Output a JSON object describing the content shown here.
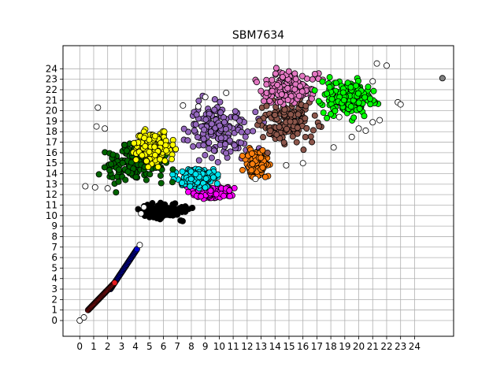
{
  "chart_data": {
    "type": "scatter",
    "title": "SBM7634",
    "xlabel": "",
    "ylabel": "",
    "grid": true,
    "xlim": [
      -1.2,
      26.8
    ],
    "ylim": [
      -1.5,
      26.2
    ],
    "xticks": [
      0,
      1,
      2,
      3,
      4,
      5,
      6,
      7,
      8,
      9,
      10,
      11,
      12,
      13,
      14,
      15,
      16,
      17,
      18,
      19,
      20,
      21,
      22,
      23,
      24
    ],
    "yticks": [
      0,
      1,
      2,
      3,
      4,
      5,
      6,
      7,
      8,
      9,
      10,
      11,
      12,
      13,
      14,
      15,
      16,
      17,
      18,
      19,
      20,
      21,
      22,
      23,
      24
    ],
    "clusters": [
      {
        "color": "#0000cc",
        "center": [
          3.2,
          4.6
        ],
        "shape": "line",
        "from": [
          2.2,
          3.0
        ],
        "to": [
          4.1,
          6.8
        ]
      },
      {
        "color": "#e41a1c",
        "center": [
          1.5,
          2.0
        ],
        "shape": "line",
        "from": [
          0.6,
          1.0
        ],
        "to": [
          2.5,
          3.6
        ]
      },
      {
        "color": "#000000",
        "center": [
          6.1,
          10.4
        ],
        "spread": [
          1.3,
          0.6
        ]
      },
      {
        "color": "#ff00ff",
        "center": [
          9.5,
          12.2
        ],
        "spread": [
          1.3,
          0.5
        ]
      },
      {
        "color": "#00e5ee",
        "center": [
          8.3,
          13.6
        ],
        "spread": [
          1.2,
          0.9
        ]
      },
      {
        "color": "#006400",
        "center": [
          4.0,
          15.0
        ],
        "spread": [
          2.0,
          1.8
        ]
      },
      {
        "color": "#ffff00",
        "center": [
          5.3,
          16.5
        ],
        "spread": [
          1.2,
          1.3
        ]
      },
      {
        "color": "#9467bd",
        "center": [
          10.0,
          18.2
        ],
        "spread": [
          2.0,
          2.2
        ]
      },
      {
        "color": "#ff7f0e",
        "center": [
          12.6,
          15.0
        ],
        "spread": [
          0.7,
          1.2
        ]
      },
      {
        "color": "#8c564b",
        "center": [
          15.0,
          18.8
        ],
        "spread": [
          1.6,
          1.7
        ]
      },
      {
        "color": "#e377c2",
        "center": [
          15.0,
          22.0
        ],
        "spread": [
          1.7,
          1.4
        ]
      },
      {
        "color": "#00ff00",
        "center": [
          19.0,
          21.2
        ],
        "spread": [
          1.8,
          1.7
        ]
      },
      {
        "color": "#808080",
        "center": [
          26.0,
          23.1
        ],
        "spread": [
          0.0,
          0.0
        ]
      }
    ],
    "outliers": [
      [
        0,
        0
      ],
      [
        0.3,
        0.3
      ],
      [
        4.3,
        7.2
      ],
      [
        0.4,
        12.8
      ],
      [
        1.1,
        12.7
      ],
      [
        1.3,
        20.3
      ],
      [
        1.2,
        18.5
      ],
      [
        1.8,
        18.3
      ],
      [
        4.6,
        10.8
      ],
      [
        4.4,
        10.2
      ],
      [
        7.4,
        20.5
      ],
      [
        8.5,
        20.4
      ],
      [
        9.0,
        21.3
      ],
      [
        10.5,
        21.7
      ],
      [
        12.6,
        13.5
      ],
      [
        14.8,
        14.8
      ],
      [
        16.0,
        15.0
      ],
      [
        18.2,
        16.5
      ],
      [
        19.5,
        17.5
      ],
      [
        20.0,
        18.3
      ],
      [
        20.5,
        18.1
      ],
      [
        21.0,
        18.9
      ],
      [
        21.5,
        19.1
      ],
      [
        22.8,
        20.8
      ],
      [
        23.0,
        20.6
      ],
      [
        21.0,
        22.8
      ],
      [
        21.3,
        24.5
      ],
      [
        22.0,
        24.3
      ],
      [
        18.6,
        19.4
      ],
      [
        2.0,
        12.6
      ]
    ]
  }
}
